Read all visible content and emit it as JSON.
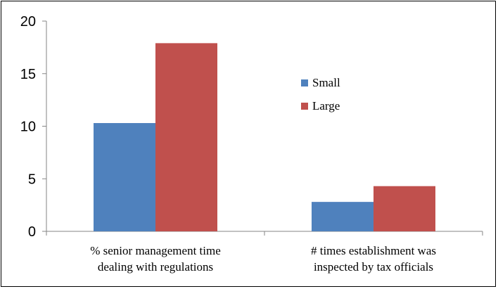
{
  "chart_data": {
    "type": "bar",
    "title": "",
    "xlabel": "",
    "ylabel": "",
    "categories": [
      [
        "% senior management time",
        "dealing with regulations"
      ],
      [
        "# times establishment was",
        "inspected by tax officials"
      ]
    ],
    "series": [
      {
        "name": "Small",
        "values": [
          10.3,
          2.8
        ],
        "color": "#4f81bd"
      },
      {
        "name": "Large",
        "values": [
          17.9,
          4.3
        ],
        "color": "#c0504d"
      }
    ],
    "ylim": [
      0,
      20
    ],
    "yticks": [
      "0",
      "5",
      "10",
      "15",
      "20"
    ],
    "grid": false,
    "legend_position": "right"
  }
}
